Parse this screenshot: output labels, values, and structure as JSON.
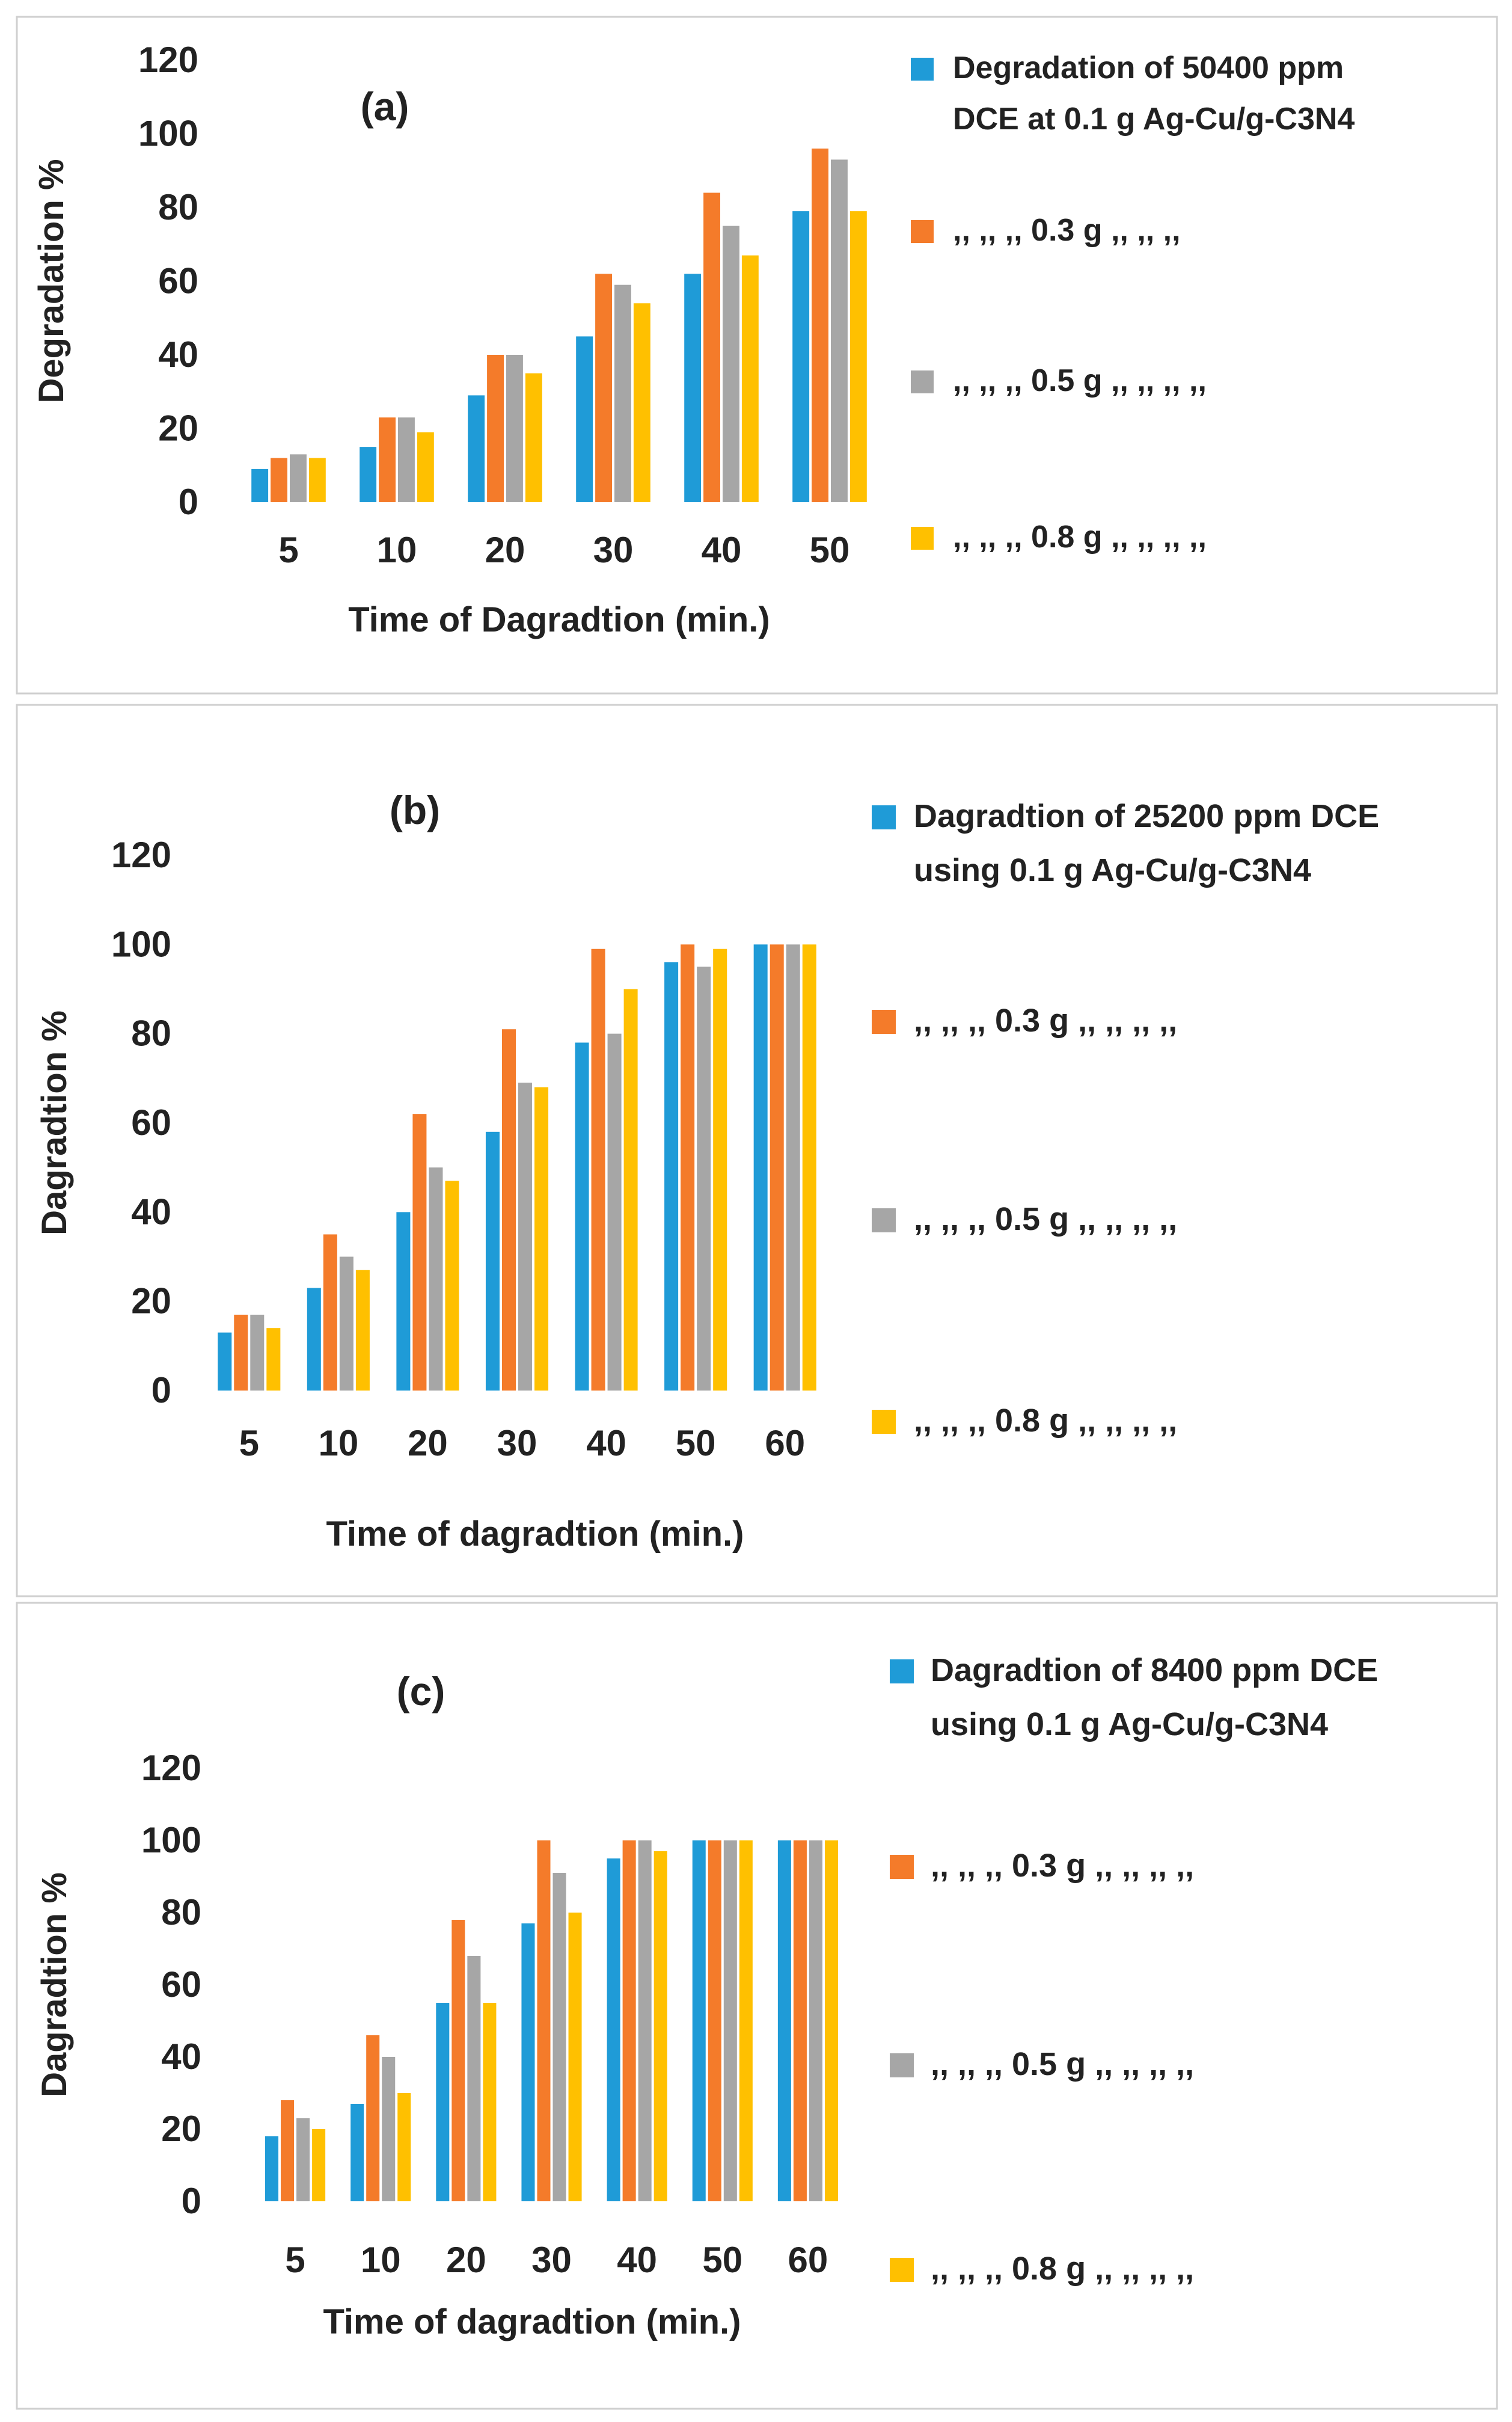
{
  "colors": {
    "s1": "#1f9bd7",
    "s2": "#f47b2a",
    "s3": "#a6a6a6",
    "s4": "#ffc000",
    "frame": "#cfcfcf"
  },
  "chart_data": [
    {
      "type": "bar",
      "panel_label": "(a)",
      "categories": [
        "5",
        "10",
        "20",
        "30",
        "40",
        "50"
      ],
      "series": [
        {
          "name": "Degradation of 50400 ppm DCE at 0.1 g Ag-Cu/g-C3N4",
          "values": [
            9,
            15,
            29,
            45,
            62,
            79
          ]
        },
        {
          "name": ",, ,, ,, 0.3 g ,, ,, ,,",
          "values": [
            12,
            23,
            40,
            62,
            84,
            96
          ]
        },
        {
          "name": ",, ,, ,, 0.5 g ,, ,, ,, ,,",
          "values": [
            13,
            23,
            40,
            59,
            75,
            93
          ]
        },
        {
          "name": ",, ,, ,, 0.8 g ,, ,, ,, ,,",
          "values": [
            12,
            19,
            35,
            54,
            67,
            79
          ]
        }
      ],
      "legend_lines": [
        [
          "Degradation of 50400 ppm",
          "DCE at 0.1 g Ag-Cu/g-C3N4"
        ],
        [
          ",,  ,,  ,, 0.3 g ,,  ,,  ,,"
        ],
        [
          ",, ,, ,, 0.5 g ,, ,, ,, ,,"
        ],
        [
          ",, ,, ,, 0.8 g ,, ,, ,, ,,"
        ]
      ],
      "yticks": [
        "0",
        "20",
        "40",
        "60",
        "80",
        "100",
        "120"
      ],
      "ylim": [
        0,
        120
      ],
      "xlabel": "Time of Dagradtion (min.)",
      "ylabel": "Degradation %"
    },
    {
      "type": "bar",
      "panel_label": "(b)",
      "categories": [
        "5",
        "10",
        "20",
        "30",
        "40",
        "50",
        "60"
      ],
      "series": [
        {
          "name": "Dagradtion of 25200 ppm DCE using 0.1 g Ag-Cu/g-C3N4",
          "values": [
            13,
            23,
            40,
            58,
            78,
            96,
            100
          ]
        },
        {
          "name": ",, ,, ,, 0.3 g ,, ,, ,, ,,",
          "values": [
            17,
            35,
            62,
            81,
            99,
            100,
            100
          ]
        },
        {
          "name": ",, ,, ,, 0.5 g ,, ,, ,, ,,",
          "values": [
            17,
            30,
            50,
            69,
            80,
            95,
            100
          ]
        },
        {
          "name": ",, ,, ,, 0.8 g ,, ,, ,, ,,",
          "values": [
            14,
            27,
            47,
            68,
            90,
            99,
            100
          ]
        }
      ],
      "legend_lines": [
        [
          "Dagradtion of 25200 ppm DCE",
          "using 0.1 g Ag-Cu/g-C3N4"
        ],
        [
          ",, ,, ,, 0.3 g ,, ,, ,, ,,"
        ],
        [
          ",, ,, ,, 0.5 g ,, ,, ,, ,,"
        ],
        [
          ",, ,, ,, 0.8 g ,, ,, ,, ,,"
        ]
      ],
      "yticks": [
        "0",
        "20",
        "40",
        "60",
        "80",
        "100",
        "120"
      ],
      "ylim": [
        0,
        120
      ],
      "xlabel": "Time of dagradtion (min.)",
      "ylabel": "Dagradtion %"
    },
    {
      "type": "bar",
      "panel_label": "(c)",
      "categories": [
        "5",
        "10",
        "20",
        "30",
        "40",
        "50",
        "60"
      ],
      "series": [
        {
          "name": "Dagradtion of 8400 ppm DCE using 0.1 g Ag-Cu/g-C3N4",
          "values": [
            18,
            27,
            55,
            77,
            95,
            100,
            100
          ]
        },
        {
          "name": ",, ,, ,, 0.3 g ,, ,, ,, ,,",
          "values": [
            28,
            46,
            78,
            100,
            100,
            100,
            100
          ]
        },
        {
          "name": ",, ,, ,, 0.5 g ,, ,, ,, ,,",
          "values": [
            23,
            40,
            68,
            91,
            100,
            100,
            100
          ]
        },
        {
          "name": ",, ,, ,, 0.8 g ,, ,, ,, ,,",
          "values": [
            20,
            30,
            55,
            80,
            97,
            100,
            100
          ]
        }
      ],
      "legend_lines": [
        [
          "Dagradtion of 8400 ppm DCE",
          "using 0.1 g Ag-Cu/g-C3N4"
        ],
        [
          ",, ,, ,, 0.3 g ,, ,, ,, ,,"
        ],
        [
          ",, ,, ,, 0.5 g ,, ,, ,, ,,"
        ],
        [
          ",, ,, ,, 0.8 g ,, ,, ,, ,,"
        ]
      ],
      "yticks": [
        "0",
        "20",
        "40",
        "60",
        "80",
        "100",
        "120"
      ],
      "ylim": [
        0,
        120
      ],
      "xlabel": "Time of dagradtion (min.)",
      "ylabel": "Dagradtion %"
    }
  ]
}
